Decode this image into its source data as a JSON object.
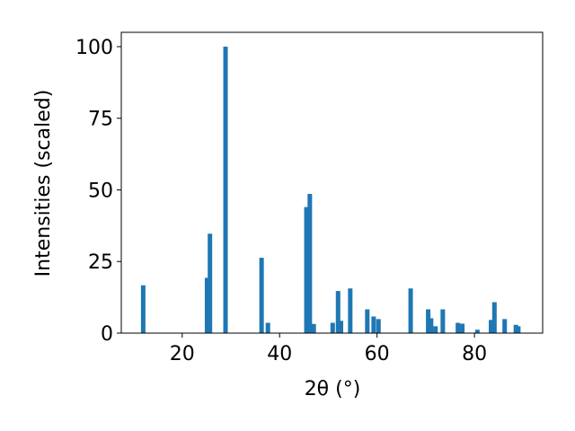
{
  "chart_data": {
    "type": "bar",
    "xlabel": "2θ (°)",
    "ylabel": "Intensities (scaled)",
    "xlim": [
      7.5,
      94
    ],
    "ylim": [
      0,
      105
    ],
    "xticks": [
      20,
      40,
      60,
      80
    ],
    "yticks": [
      0,
      25,
      50,
      75,
      100
    ],
    "grid": false,
    "bar_color": "#1f77b4",
    "bars": [
      {
        "x": 12.0,
        "y": 16.7
      },
      {
        "x": 25.1,
        "y": 19.3
      },
      {
        "x": 25.7,
        "y": 34.7
      },
      {
        "x": 28.9,
        "y": 100
      },
      {
        "x": 36.3,
        "y": 26.3
      },
      {
        "x": 37.6,
        "y": 3.6
      },
      {
        "x": 45.5,
        "y": 44.0
      },
      {
        "x": 46.2,
        "y": 48.6
      },
      {
        "x": 47.0,
        "y": 3.2
      },
      {
        "x": 50.9,
        "y": 3.6
      },
      {
        "x": 52.0,
        "y": 14.7
      },
      {
        "x": 52.6,
        "y": 4.3
      },
      {
        "x": 54.5,
        "y": 15.6
      },
      {
        "x": 58.0,
        "y": 8.3
      },
      {
        "x": 59.3,
        "y": 5.8
      },
      {
        "x": 60.3,
        "y": 4.9
      },
      {
        "x": 66.9,
        "y": 15.6
      },
      {
        "x": 70.5,
        "y": 8.3
      },
      {
        "x": 71.1,
        "y": 5.2
      },
      {
        "x": 72.0,
        "y": 2.4
      },
      {
        "x": 73.5,
        "y": 8.3
      },
      {
        "x": 76.6,
        "y": 3.6
      },
      {
        "x": 77.5,
        "y": 3.3
      },
      {
        "x": 80.6,
        "y": 1.2
      },
      {
        "x": 83.4,
        "y": 4.6
      },
      {
        "x": 84.1,
        "y": 10.8
      },
      {
        "x": 86.2,
        "y": 4.9
      },
      {
        "x": 88.5,
        "y": 2.9
      },
      {
        "x": 89.0,
        "y": 2.4
      }
    ]
  }
}
